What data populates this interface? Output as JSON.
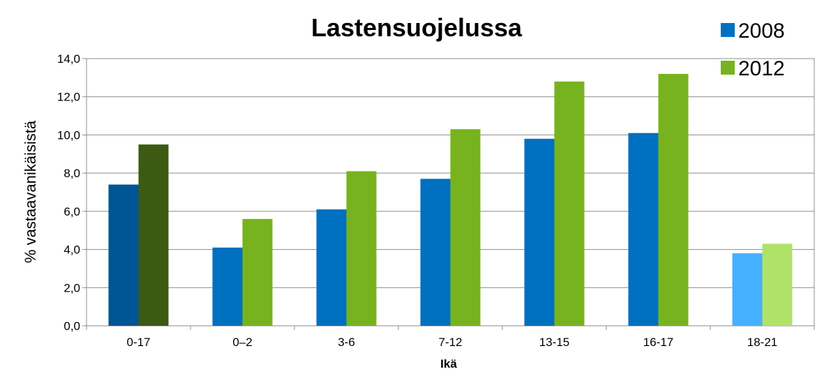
{
  "chart_data": {
    "type": "bar",
    "title": "Lastensuojelussa",
    "xlabel": "Ikä",
    "ylabel": "% vastaavanikäisistä",
    "categories": [
      "0-17",
      "0–2",
      "3-6",
      "7-12",
      "13-15",
      "16-17",
      "18-21"
    ],
    "ylim": [
      0,
      14
    ],
    "yticks": [
      "0,0",
      "2,0",
      "4,0",
      "6,0",
      "8,0",
      "10,0",
      "12,0",
      "14,0"
    ],
    "grid": true,
    "legend_position": "top-right",
    "series": [
      {
        "name": "2008",
        "values": [
          7.4,
          4.1,
          6.1,
          7.7,
          9.8,
          10.1,
          3.8
        ],
        "color": "#0070C0"
      },
      {
        "name": "2012",
        "values": [
          9.5,
          5.6,
          8.1,
          10.3,
          12.8,
          13.2,
          4.3
        ],
        "color": "#77B31E"
      }
    ],
    "category_overrides": {
      "0-17": [
        "#005595",
        "#3C5A12"
      ],
      "18-21": [
        "#45B0FF",
        "#B0E26A"
      ]
    }
  }
}
